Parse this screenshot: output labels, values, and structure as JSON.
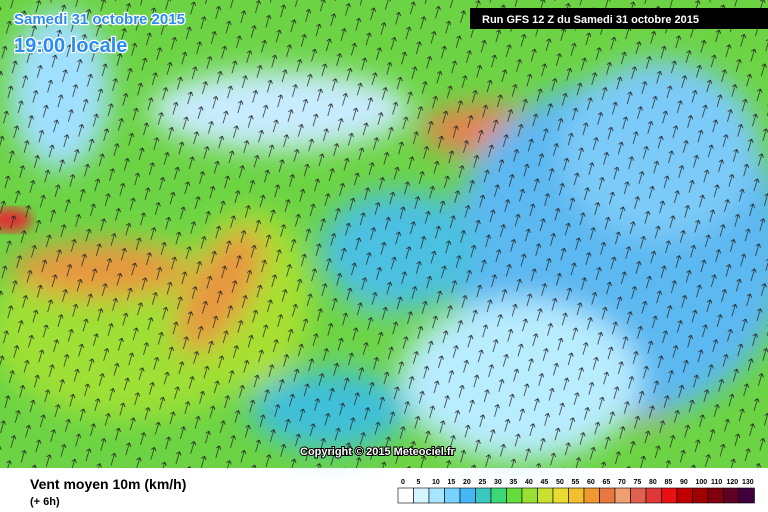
{
  "header": {
    "date": "Samedi 31 octobre 2015",
    "time": "19:00 locale",
    "run": "Run GFS 12 Z du Samedi 31 octobre 2015"
  },
  "copyright": "Copyright © 2015 Meteociel.fr",
  "legend": {
    "title": "Vent moyen 10m (km/h)",
    "subtitle": "(+ 6h)",
    "ticks": [
      0,
      5,
      10,
      15,
      20,
      25,
      30,
      35,
      40,
      45,
      50,
      55,
      60,
      65,
      70,
      75,
      80,
      85,
      90,
      100,
      110,
      120,
      130
    ],
    "colors": [
      "#ffffff",
      "#d4f4ff",
      "#a8e6ff",
      "#78d2ff",
      "#44b8f4",
      "#3cc8c0",
      "#3cd878",
      "#64dc3c",
      "#9ae034",
      "#c8e030",
      "#e8dc30",
      "#f0c030",
      "#f09830",
      "#e87840",
      "#f0a070",
      "#e06050",
      "#e03838",
      "#e81010",
      "#c00000",
      "#a00000",
      "#800010",
      "#600020",
      "#400040"
    ]
  }
}
